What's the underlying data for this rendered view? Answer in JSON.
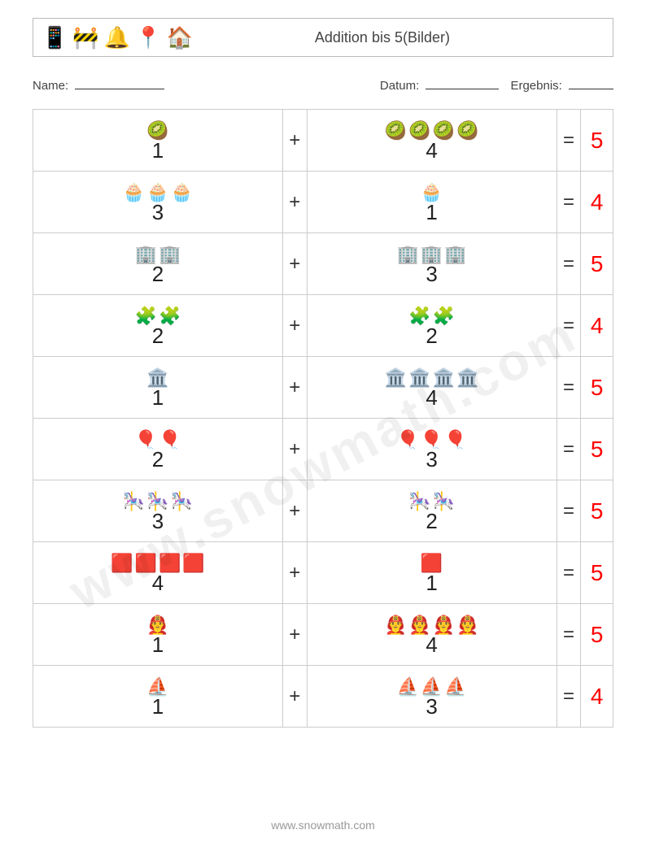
{
  "header": {
    "icons": [
      "📱",
      "🚧",
      "🔔",
      "📍",
      "🏠"
    ],
    "title": "Addition bis 5(Bilder)"
  },
  "meta": {
    "name_label": "Name:",
    "date_label": "Datum:",
    "result_label": "Ergebnis:",
    "blank_widths": {
      "name": 110,
      "date": 90,
      "result": 55
    }
  },
  "style": {
    "answer_color": "#ff0000",
    "border_color": "#cccccc",
    "text_color": "#333333",
    "icon_fontsize": 22,
    "number_fontsize": 26
  },
  "problems": [
    {
      "a": 1,
      "b": 4,
      "ans": 5,
      "icon_a": "🥝",
      "icon_b": "🥝"
    },
    {
      "a": 3,
      "b": 1,
      "ans": 4,
      "icon_a": "🧁",
      "icon_b": "🧁"
    },
    {
      "a": 2,
      "b": 3,
      "ans": 5,
      "icon_a": "🏢",
      "icon_b": "🏢"
    },
    {
      "a": 2,
      "b": 2,
      "ans": 4,
      "icon_a": "🧩",
      "icon_b": "🧩"
    },
    {
      "a": 1,
      "b": 4,
      "ans": 5,
      "icon_a": "🏛️",
      "icon_b": "🏛️"
    },
    {
      "a": 2,
      "b": 3,
      "ans": 5,
      "icon_a": "🎈",
      "icon_b": "🎈"
    },
    {
      "a": 3,
      "b": 2,
      "ans": 5,
      "icon_a": "🎠",
      "icon_b": "🎠"
    },
    {
      "a": 4,
      "b": 1,
      "ans": 5,
      "icon_a": "🟥",
      "icon_b": "🟥"
    },
    {
      "a": 1,
      "b": 4,
      "ans": 5,
      "icon_a": "👨‍🚒",
      "icon_b": "👨‍🚒"
    },
    {
      "a": 1,
      "b": 3,
      "ans": 4,
      "icon_a": "⛵",
      "icon_b": "⛵"
    }
  ],
  "symbols": {
    "plus": "+",
    "equals": "="
  },
  "footer": "www.snowmath.com",
  "watermark": "www.snowmath.com"
}
